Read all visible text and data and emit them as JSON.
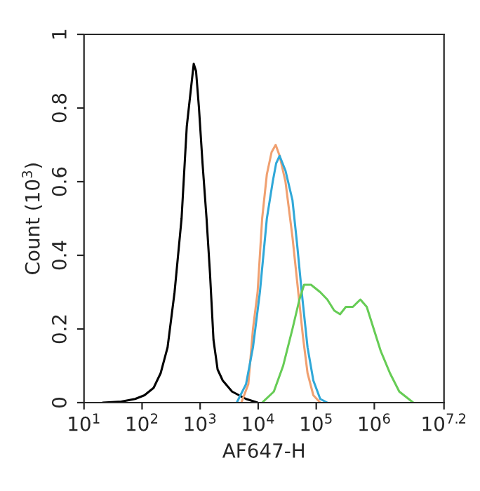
{
  "chart_data": {
    "type": "line",
    "xlabel": "AF647-H",
    "ylabel": "Count (10$^{3}$)",
    "log": "x",
    "xlim": [
      10,
      15848932
    ],
    "xticks": [
      {
        "value": 10,
        "label": "10$^{1}$"
      },
      {
        "value": 100,
        "label": "10$^{2}$"
      },
      {
        "value": 1000,
        "label": "10$^{3}$"
      },
      {
        "value": 10000,
        "label": "10$^{4}$"
      },
      {
        "value": 100000,
        "label": "10$^{5}$"
      },
      {
        "value": 1000000,
        "label": "10$^{6}$"
      },
      {
        "value": 15848932,
        "label": "10$^{7.2}$"
      }
    ],
    "ylim": [
      0,
      1
    ],
    "yticks": [
      0,
      0.2,
      0.4,
      0.6,
      0.8,
      1
    ],
    "grid": false,
    "marker": "none",
    "line_style": "solid",
    "series": [
      {
        "color": "#000000",
        "x": [
          21,
          44,
          76,
          110,
          158,
          209,
          275,
          363,
          479,
          589,
          692,
          776,
          851,
          955,
          1100,
          1290,
          1480,
          1700,
          2000,
          2450,
          3550,
          6170,
          9770
        ],
        "values": [
          0,
          0.003,
          0.01,
          0.02,
          0.04,
          0.08,
          0.15,
          0.3,
          0.5,
          0.75,
          0.85,
          0.92,
          0.9,
          0.8,
          0.65,
          0.5,
          0.35,
          0.17,
          0.09,
          0.06,
          0.03,
          0.01,
          0
        ]
      },
      {
        "color": "#f0a070",
        "x": [
          5130,
          6760,
          8130,
          9770,
          11700,
          14100,
          17000,
          20000,
          23400,
          29500,
          38900,
          49000,
          58900,
          70800,
          89100,
          117000
        ],
        "values": [
          0,
          0.05,
          0.2,
          0.3,
          0.5,
          0.62,
          0.68,
          0.7,
          0.67,
          0.6,
          0.45,
          0.3,
          0.18,
          0.08,
          0.02,
          0
        ]
      },
      {
        "color": "#30a8d8",
        "x": [
          4270,
          6170,
          8130,
          10700,
          14100,
          17800,
          20400,
          23400,
          29500,
          38900,
          46800,
          56200,
          70800,
          89100,
          117000,
          155000
        ],
        "values": [
          0,
          0.05,
          0.15,
          0.3,
          0.5,
          0.6,
          0.65,
          0.67,
          0.63,
          0.55,
          0.43,
          0.3,
          0.15,
          0.06,
          0.01,
          0
        ]
      },
      {
        "color": "#66cc55",
        "x": [
          11700,
          18600,
          26900,
          38900,
          51300,
          61700,
          81300,
          117000,
          155000,
          204000,
          257000,
          324000,
          427000,
          575000,
          741000,
          977000,
          1290000,
          1860000,
          2690000,
          4680000
        ],
        "values": [
          0,
          0.03,
          0.1,
          0.2,
          0.28,
          0.32,
          0.32,
          0.3,
          0.28,
          0.25,
          0.24,
          0.26,
          0.26,
          0.28,
          0.26,
          0.2,
          0.14,
          0.08,
          0.03,
          0
        ]
      }
    ]
  }
}
